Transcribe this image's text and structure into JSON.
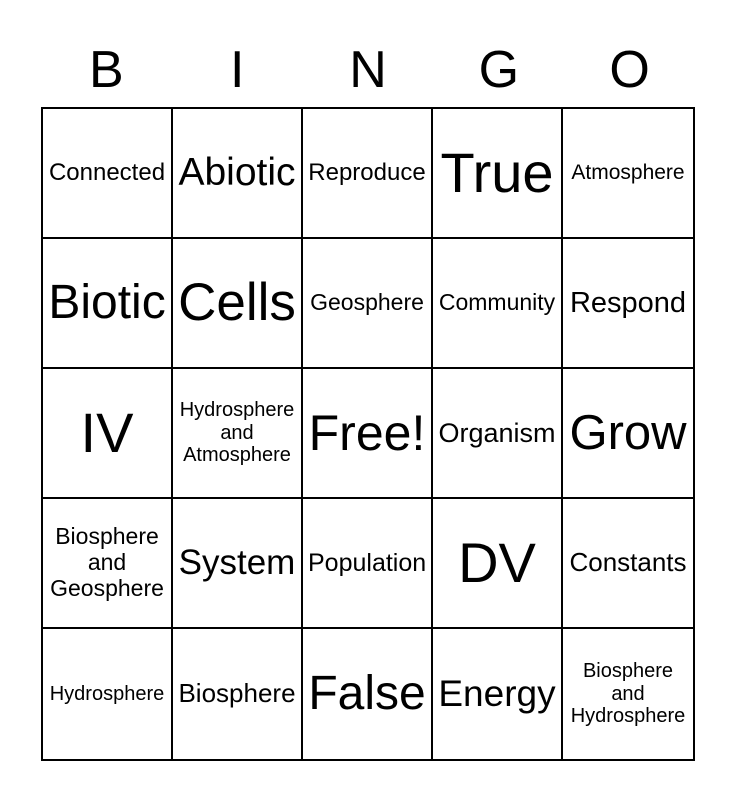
{
  "title": {
    "letters": [
      "B",
      "I",
      "N",
      "G",
      "O"
    ]
  },
  "board": {
    "rows": [
      [
        "Connected",
        "Abiotic",
        "Reproduce",
        "True",
        "Atmosphere"
      ],
      [
        "Biotic",
        "Cells",
        "Geosphere",
        "Community",
        "Respond"
      ],
      [
        "IV",
        "Hydrosphere and Atmosphere",
        "Free!",
        "Organism",
        "Grow"
      ],
      [
        "Biosphere and Geosphere",
        "System",
        "Population",
        "DV",
        "Constants"
      ],
      [
        "Hydrosphere",
        "Biosphere",
        "False",
        "Energy",
        "Biosphere and Hydrosphere"
      ]
    ]
  },
  "colors": {
    "background": "#ffffff",
    "grid_line": "#000000",
    "text": "#000000"
  }
}
